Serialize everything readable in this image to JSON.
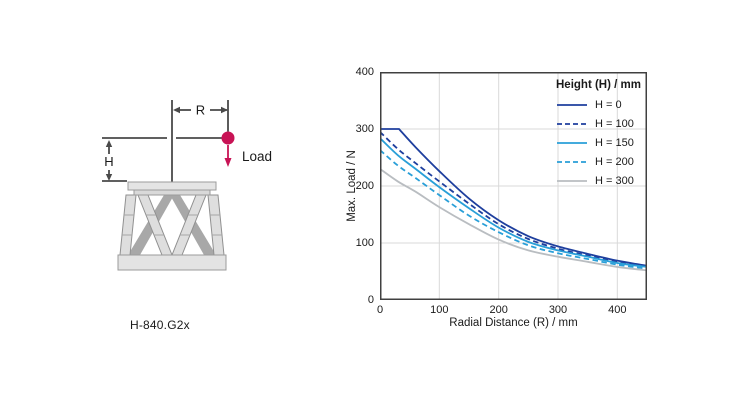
{
  "diagram": {
    "caption": "H-840.G2x",
    "labels": {
      "radial": "R",
      "height": "H",
      "load": "Load"
    },
    "colors": {
      "load_accent": "#c81355",
      "dimension_line": "#4a4a4a",
      "body_light": "#e4e4e4",
      "body_mid": "#d9d9d9",
      "leg_light": "#dedede",
      "leg_dark": "#a8a8a8"
    }
  },
  "chart_data": {
    "type": "line",
    "title": "",
    "xlabel": "Radial Distance (R) / mm",
    "ylabel": "Max. Load / N",
    "xlim": [
      0,
      450
    ],
    "ylim": [
      0,
      400
    ],
    "x_ticks": [
      0,
      100,
      200,
      300,
      400
    ],
    "y_ticks": [
      0,
      100,
      200,
      300,
      400
    ],
    "grid": true,
    "legend_title": "Height (H) / mm",
    "legend_position": "top-right",
    "colors": {
      "frame": "#404040",
      "grid": "#d9d9d9",
      "dark_blue": "#1e3f9e",
      "light_blue": "#299fd8",
      "gray": "#b9bdc1"
    },
    "series": [
      {
        "name": "H = 0",
        "color": "#1e3f9e",
        "dash": "solid",
        "points": [
          [
            0,
            300
          ],
          [
            32,
            300
          ],
          [
            60,
            268
          ],
          [
            100,
            226
          ],
          [
            150,
            178
          ],
          [
            200,
            140
          ],
          [
            250,
            112
          ],
          [
            300,
            94
          ],
          [
            350,
            81
          ],
          [
            400,
            69
          ],
          [
            450,
            60
          ]
        ]
      },
      {
        "name": "H = 100",
        "color": "#1e3f9e",
        "dash": "dashed",
        "points": [
          [
            0,
            295
          ],
          [
            30,
            265
          ],
          [
            60,
            240
          ],
          [
            100,
            208
          ],
          [
            150,
            169
          ],
          [
            200,
            133
          ],
          [
            250,
            107
          ],
          [
            300,
            90
          ],
          [
            350,
            78
          ],
          [
            400,
            67
          ],
          [
            450,
            59
          ]
        ]
      },
      {
        "name": "H = 150",
        "color": "#299fd8",
        "dash": "solid",
        "points": [
          [
            0,
            284
          ],
          [
            30,
            254
          ],
          [
            60,
            230
          ],
          [
            100,
            198
          ],
          [
            150,
            161
          ],
          [
            200,
            127
          ],
          [
            250,
            102
          ],
          [
            300,
            87
          ],
          [
            350,
            76
          ],
          [
            400,
            65
          ],
          [
            450,
            58
          ]
        ]
      },
      {
        "name": "H = 200",
        "color": "#299fd8",
        "dash": "dashed",
        "points": [
          [
            0,
            263
          ],
          [
            30,
            236
          ],
          [
            60,
            214
          ],
          [
            100,
            184
          ],
          [
            150,
            148
          ],
          [
            200,
            119
          ],
          [
            250,
            96
          ],
          [
            300,
            82
          ],
          [
            350,
            72
          ],
          [
            400,
            62
          ],
          [
            450,
            55
          ]
        ]
      },
      {
        "name": "H = 300",
        "color": "#b9bdc1",
        "dash": "solid",
        "points": [
          [
            0,
            230
          ],
          [
            30,
            208
          ],
          [
            60,
            190
          ],
          [
            100,
            163
          ],
          [
            150,
            133
          ],
          [
            200,
            106
          ],
          [
            250,
            87
          ],
          [
            300,
            76
          ],
          [
            350,
            67
          ],
          [
            400,
            58
          ],
          [
            450,
            52
          ]
        ]
      }
    ]
  }
}
